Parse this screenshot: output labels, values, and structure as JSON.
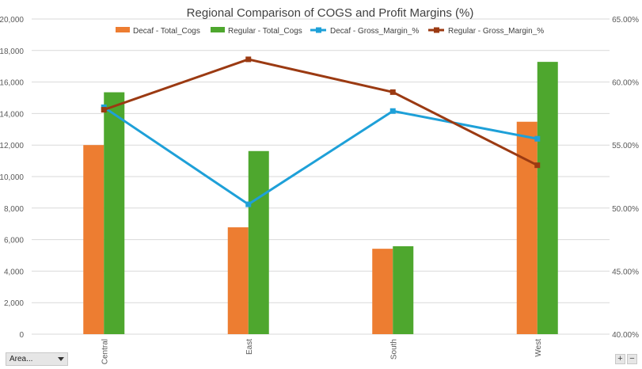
{
  "controls": {
    "area_label": "Area...",
    "zoom_in": "+",
    "zoom_out": "−"
  },
  "chart_data": {
    "type": "bar",
    "title": "Regional Comparison of COGS and Profit Margins (%)",
    "categories": [
      "Central",
      "East",
      "South",
      "West"
    ],
    "ylim": [
      0,
      20000
    ],
    "y_ticks": [
      "0",
      "2,000",
      "4,000",
      "6,000",
      "8,000",
      "10,000",
      "12,000",
      "14,000",
      "16,000",
      "18,000",
      "20,000"
    ],
    "y2lim": [
      40,
      65
    ],
    "y2_ticks": [
      "40.00%",
      "45.00%",
      "50.00%",
      "55.00%",
      "60.00%",
      "65.00%"
    ],
    "grid": true,
    "legend_position": "top",
    "series": [
      {
        "name": "Decaf - Total_Cogs",
        "kind": "bar",
        "axis": "left",
        "color": "#ED7D31",
        "values": [
          12000,
          6780,
          5420,
          13480
        ]
      },
      {
        "name": "Regular - Total_Cogs",
        "kind": "bar",
        "axis": "left",
        "color": "#4EA72E",
        "values": [
          15350,
          11620,
          5580,
          17280
        ]
      },
      {
        "name": "Decaf - Gross_Margin_%",
        "kind": "line",
        "axis": "right",
        "color": "#1EA0D8",
        "values": [
          58.0,
          50.3,
          57.7,
          55.5
        ]
      },
      {
        "name": "Regular - Gross_Margin_%",
        "kind": "line",
        "axis": "right",
        "color": "#9B3A12",
        "values": [
          57.8,
          61.8,
          59.2,
          53.4
        ]
      }
    ]
  }
}
